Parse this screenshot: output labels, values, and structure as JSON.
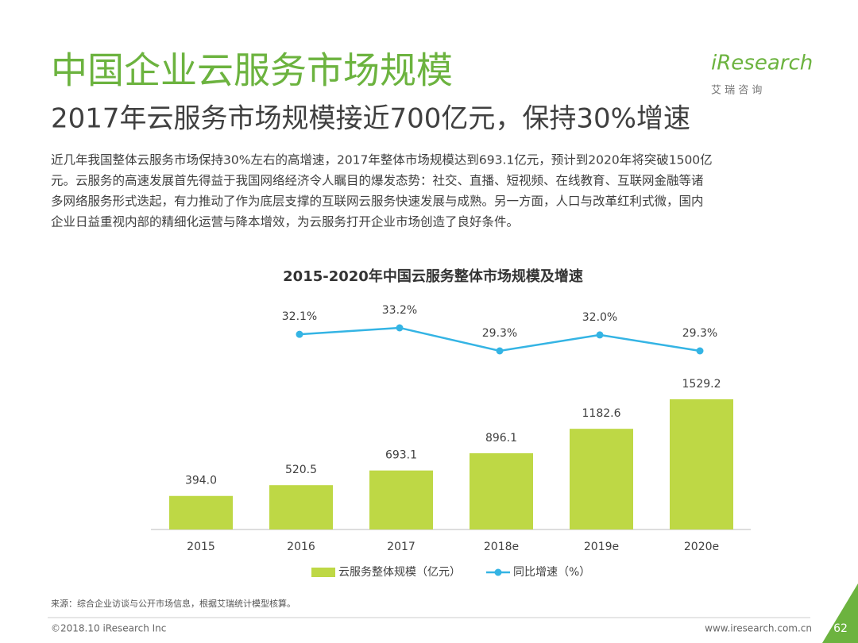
{
  "header": {
    "title": "中国企业云服务市场规模",
    "subtitle": "2017年云服务市场规模接近700亿元，保持30%增速",
    "logo": "iResearch",
    "logo_sub": "艾 瑞 咨 询"
  },
  "body": {
    "lines": [
      "近几年我国整体云服务市场保持30%左右的高增速，2017年整体市场规模达到693.1亿元，预计到2020年将突破1500亿",
      "元。云服务的高速发展首先得益于我国网络经济令人瞩目的爆发态势：社交、直播、短视频、在线教育、互联网金融等诸",
      "多网络服务形式迭起，有力推动了作为底层支撑的互联网云服务快速发展与成熟。另一方面，人口与改革红利式微，国内",
      "企业日益重视内部的精细化运营与降本增效，为云服务打开企业市场创造了良好条件。"
    ]
  },
  "chart_data": {
    "type": "bar",
    "title": "2015-2020年中国云服务整体市场规模及增速",
    "categories": [
      "2015",
      "2016",
      "2017",
      "2018e",
      "2019e",
      "2020e"
    ],
    "series": [
      {
        "name": "云服务整体规模（亿元）",
        "type": "bar",
        "color": "#bed845",
        "values": [
          394.0,
          520.5,
          693.1,
          896.1,
          1182.6,
          1529.2
        ],
        "value_labels": [
          "394.0",
          "520.5",
          "693.1",
          "896.1",
          "1182.6",
          "1529.2"
        ]
      },
      {
        "name": "同比增速（%）",
        "type": "line",
        "color": "#34b4e4",
        "values": [
          null,
          32.1,
          33.2,
          29.3,
          32.0,
          29.3
        ],
        "value_labels": [
          null,
          "32.1%",
          "33.2%",
          "29.3%",
          "32.0%",
          "29.3%"
        ]
      }
    ]
  },
  "footer": {
    "source": "来源：综合企业访谈与公开市场信息，根据艾瑞统计模型核算。",
    "copyright": "©2018.10 iResearch Inc",
    "url": "www.iresearch.com.cn",
    "page": "62"
  }
}
